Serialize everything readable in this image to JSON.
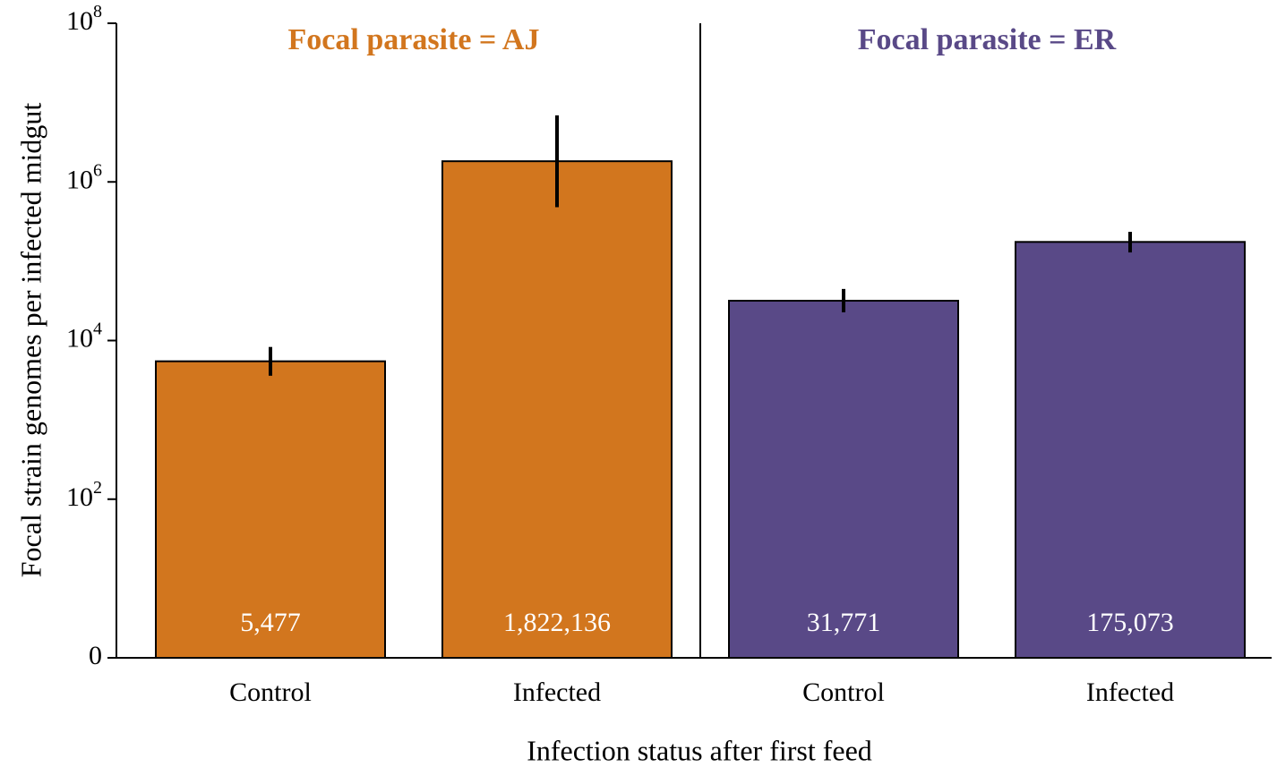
{
  "chart_data": {
    "type": "bar",
    "y_label": "Focal strain genomes per infected midgut",
    "x_label": "Infection status after first feed",
    "log_scale": true,
    "ylim": [
      1,
      100000000
    ],
    "yticks": [
      {
        "value": 1,
        "label": "0"
      },
      {
        "value": 100,
        "label": "10^2"
      },
      {
        "value": 10000,
        "label": "10^4"
      },
      {
        "value": 1000000,
        "label": "10^6"
      },
      {
        "value": 100000000,
        "label": "10^8"
      }
    ],
    "panels": [
      {
        "title": "Focal parasite = AJ",
        "color": "#d2761e",
        "categories": [
          "Control",
          "Infected"
        ],
        "values": [
          5477,
          1822136
        ],
        "value_labels": [
          "5,477",
          "1,822,136"
        ],
        "error_low": [
          3600,
          480000
        ],
        "error_high": [
          8300,
          6900000
        ]
      },
      {
        "title": "Focal parasite = ER",
        "color": "#594987",
        "categories": [
          "Control",
          "Infected"
        ],
        "values": [
          31771,
          175073
        ],
        "value_labels": [
          "31,771",
          "175,073"
        ],
        "error_low": [
          22700,
          129000
        ],
        "error_high": [
          44700,
          235000
        ]
      }
    ]
  }
}
